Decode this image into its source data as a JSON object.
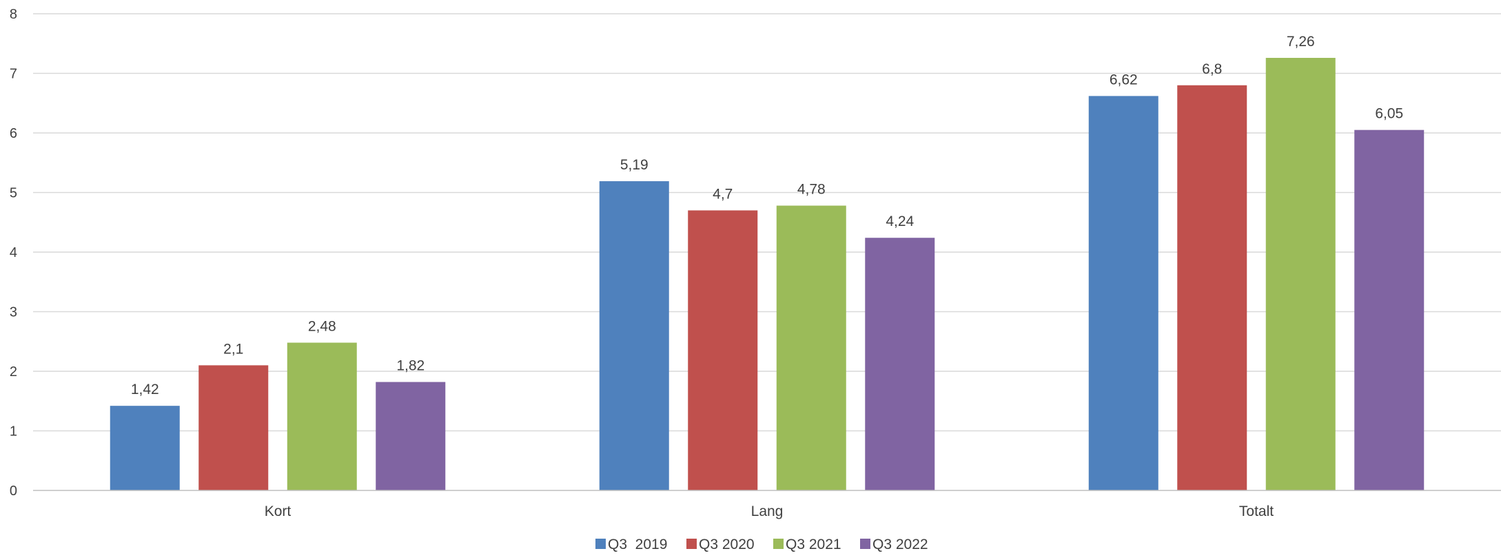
{
  "chart_data": {
    "type": "bar",
    "categories": [
      "Kort",
      "Lang",
      "Totalt"
    ],
    "series": [
      {
        "name": "Q3  2019",
        "color": "#4F81BD",
        "values": [
          1.42,
          5.19,
          6.62
        ],
        "labels": [
          "1,42",
          "5,19",
          "6,62"
        ]
      },
      {
        "name": "Q3 2020",
        "color": "#C0504D",
        "values": [
          2.1,
          4.7,
          6.8
        ],
        "labels": [
          "2,1",
          "4,7",
          "6,8"
        ]
      },
      {
        "name": "Q3 2021",
        "color": "#9BBB59",
        "values": [
          2.48,
          4.78,
          7.26
        ],
        "labels": [
          "2,48",
          "4,78",
          "7,26"
        ]
      },
      {
        "name": "Q3 2022",
        "color": "#8064A2",
        "values": [
          1.82,
          4.24,
          6.05
        ],
        "labels": [
          "1,82",
          "4,24",
          "6,05"
        ]
      }
    ],
    "ylim": [
      0,
      8
    ],
    "yticks": [
      "0",
      "1",
      "2",
      "3",
      "4",
      "5",
      "6",
      "7",
      "8"
    ],
    "grid": true,
    "legend_position": "bottom",
    "gridline_color": "#D9D9D9",
    "axis_line_color": "#BFBFBF"
  }
}
